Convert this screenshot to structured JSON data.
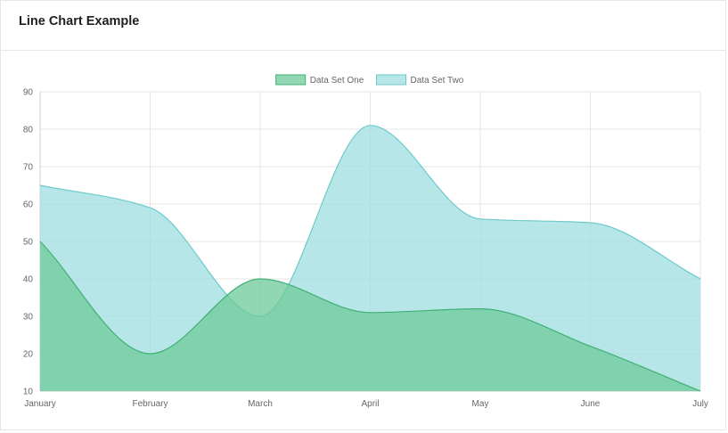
{
  "card": {
    "title": "Line Chart Example"
  },
  "chart_data": {
    "type": "area",
    "categories": [
      "January",
      "February",
      "March",
      "April",
      "May",
      "June",
      "July"
    ],
    "series": [
      {
        "name": "Data Set One",
        "values": [
          50,
          20,
          40,
          31,
          32,
          22,
          10
        ],
        "fill": "#6dc99a",
        "stroke": "#41b073"
      },
      {
        "name": "Data Set Two",
        "values": [
          65,
          59,
          30,
          81,
          56,
          55,
          40
        ],
        "fill": "#9fdee0",
        "stroke": "#6ccaca"
      }
    ],
    "ylim": [
      10,
      90
    ],
    "yticks": [
      10,
      20,
      30,
      40,
      50,
      60,
      70,
      80,
      90
    ],
    "grid": true,
    "legend": "top-center"
  }
}
